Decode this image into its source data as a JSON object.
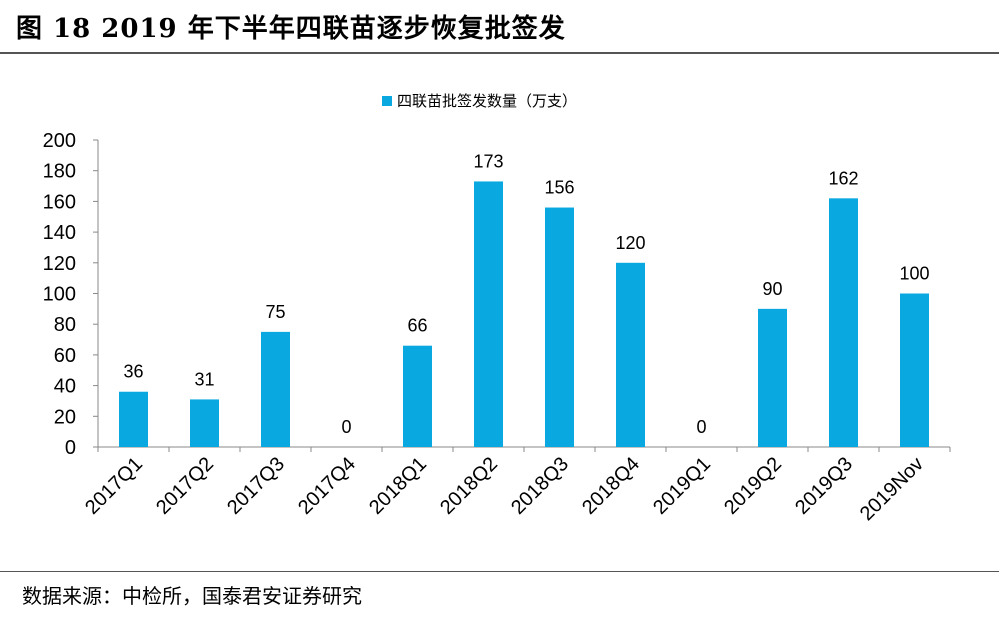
{
  "figure_title": "图  18    2019 年下半年四联苗逐步恢复批签发",
  "source_note": "数据来源：中检所，国泰君安证券研究",
  "colors": {
    "bar": "#0aa8e0",
    "axis": "#888888"
  },
  "chart_data": {
    "type": "bar",
    "categories": [
      "2017Q1",
      "2017Q2",
      "2017Q3",
      "2017Q4",
      "2018Q1",
      "2018Q2",
      "2018Q3",
      "2018Q4",
      "2019Q1",
      "2019Q2",
      "2019Q3",
      "2019Nov"
    ],
    "series": [
      {
        "name": "四联苗批签发数量（万支）",
        "values": [
          36,
          31,
          75,
          0,
          66,
          173,
          156,
          120,
          0,
          90,
          162,
          100
        ]
      }
    ],
    "ylim": [
      0,
      200
    ],
    "yticks": [
      0,
      20,
      40,
      60,
      80,
      100,
      120,
      140,
      160,
      180,
      200
    ],
    "legend_position": "top-center",
    "grid": false,
    "data_labels": true
  }
}
